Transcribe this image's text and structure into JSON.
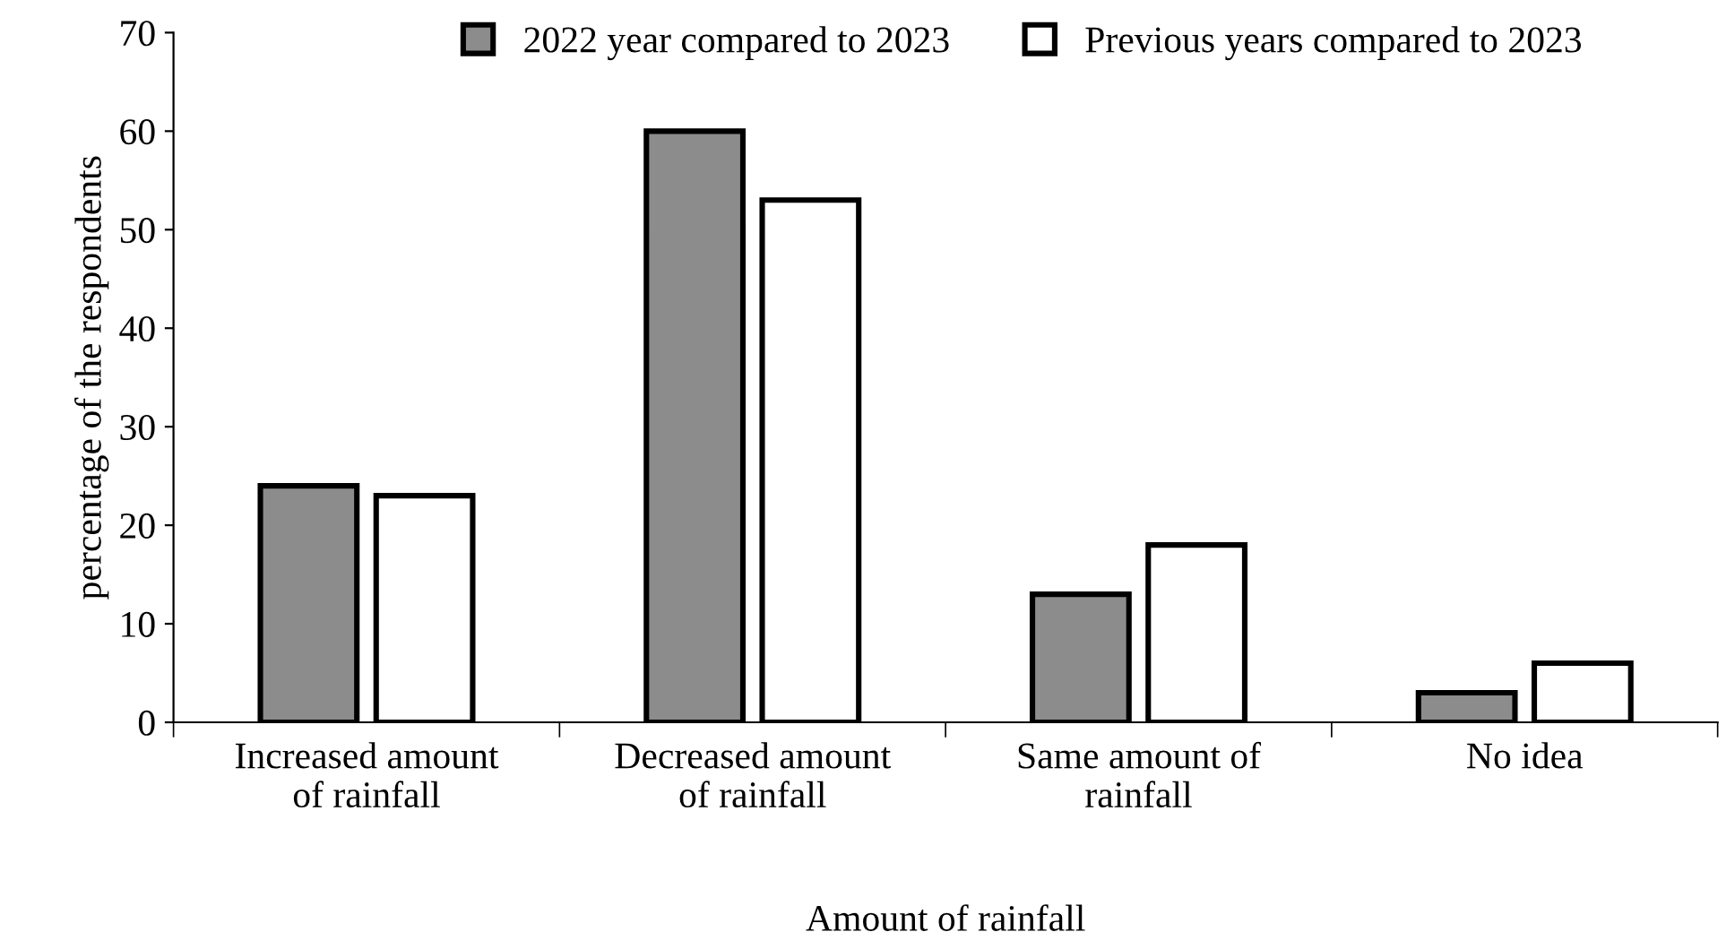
{
  "chart_data": {
    "type": "bar",
    "xlabel": "Amount of rainfall",
    "ylabel": "percentage of the respondents",
    "categories": [
      "Increased amount\nof rainfall",
      "Decreased amount\nof rainfall",
      "Same amount of\nrainfall",
      "No idea"
    ],
    "series": [
      {
        "name": "2022 year compared to 2023",
        "color": "#8c8c8c",
        "values": [
          24,
          60,
          13,
          3
        ]
      },
      {
        "name": "Previous years compared to 2023",
        "color": "#ffffff",
        "values": [
          23,
          53,
          18,
          6
        ]
      }
    ],
    "ylim": [
      0,
      70
    ],
    "yticks": [
      0,
      10,
      20,
      30,
      40,
      50,
      60,
      70
    ],
    "grid": false,
    "legend": "top"
  }
}
